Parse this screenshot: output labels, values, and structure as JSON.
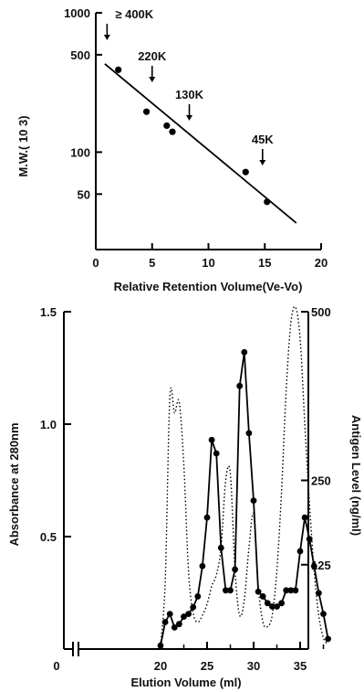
{
  "chart_data": [
    {
      "type": "scatter",
      "title": "",
      "xlabel": "Relative Retention Volume(Ve-Vo)",
      "ylabel": "M.W.( 10 3)",
      "xlim": [
        0,
        20
      ],
      "ylim": [
        20,
        1000
      ],
      "yscale": "log",
      "grid": false,
      "x_ticks": [
        "0",
        "5",
        "10",
        "15",
        "20"
      ],
      "y_ticks": [
        "1000",
        "500",
        "100",
        "50"
      ],
      "points": [
        {
          "x": 2.0,
          "y": 390
        },
        {
          "x": 4.5,
          "y": 195
        },
        {
          "x": 6.3,
          "y": 155
        },
        {
          "x": 6.8,
          "y": 140
        },
        {
          "x": 13.3,
          "y": 72
        },
        {
          "x": 15.2,
          "y": 44
        }
      ],
      "fit_line": [
        {
          "x": 0.8,
          "y": 430
        },
        {
          "x": 17.8,
          "y": 31
        }
      ],
      "annotations": [
        {
          "label": "≥ 400K",
          "x": 1.0
        },
        {
          "label": "220K",
          "x": 5.0
        },
        {
          "label": "130K",
          "x": 8.3
        },
        {
          "label": "45K",
          "x": 14.8
        }
      ]
    },
    {
      "type": "line",
      "title": "",
      "xlabel": "Elution Volume (ml)",
      "ylabel": "Absorbance at 280nm",
      "y2label": "Antigen Level (ng/ml)",
      "xlim": [
        18.5,
        40
      ],
      "ylim": [
        0,
        1.5
      ],
      "y2lim": [
        0,
        500
      ],
      "grid": false,
      "x_ticks": [
        "0",
        "20",
        "25",
        "30",
        "35"
      ],
      "y_ticks": [
        "1.5",
        "1.0",
        "0.5"
      ],
      "y2_ticks": [
        "500",
        "250",
        "125"
      ],
      "series": [
        {
          "style": "solid-markers",
          "axis": "right",
          "x": [
            20.0,
            20.5,
            21.0,
            21.5,
            22.0,
            22.5,
            23.0,
            23.5,
            24.0,
            24.5,
            25.0,
            25.5,
            26.0,
            26.5,
            27.0,
            27.5,
            28.0,
            28.5,
            29.0,
            29.5,
            30.0,
            30.5,
            31.0,
            31.5,
            32.0,
            32.5,
            33.0,
            33.5,
            34.0,
            34.5,
            35.0,
            35.5,
            36.0,
            36.5,
            37.0,
            37.5,
            38.0
          ],
          "values": [
            5,
            40,
            52,
            32,
            37,
            48,
            52,
            62,
            78,
            123,
            195,
            310,
            290,
            150,
            87,
            87,
            118,
            390,
            440,
            320,
            220,
            85,
            78,
            68,
            63,
            63,
            68,
            87,
            87,
            87,
            145,
            195,
            163,
            123,
            83,
            52,
            15
          ]
        },
        {
          "style": "dotted",
          "axis": "left",
          "x": [
            20.0,
            20.5,
            21.0,
            21.5,
            22.0,
            22.5,
            23.0,
            23.5,
            24.0,
            24.5,
            25.0,
            25.5,
            26.0,
            26.5,
            27.0,
            27.5,
            28.0,
            28.5,
            29.0,
            29.5,
            30.0,
            30.5,
            31.0,
            31.5,
            32.0,
            32.5,
            33.0,
            33.5,
            34.0,
            34.5,
            35.0,
            35.5,
            36.0,
            36.5,
            37.0,
            37.5,
            38.0
          ],
          "values": [
            0.02,
            0.3,
            1.12,
            1.05,
            1.1,
            0.82,
            0.35,
            0.16,
            0.12,
            0.15,
            0.2,
            0.28,
            0.33,
            0.45,
            0.75,
            0.78,
            0.35,
            0.15,
            0.22,
            0.45,
            0.6,
            0.28,
            0.12,
            0.1,
            0.15,
            0.35,
            0.7,
            1.15,
            1.45,
            1.52,
            1.38,
            1.0,
            0.65,
            0.35,
            0.15,
            0.05,
            0.02
          ]
        }
      ]
    }
  ]
}
